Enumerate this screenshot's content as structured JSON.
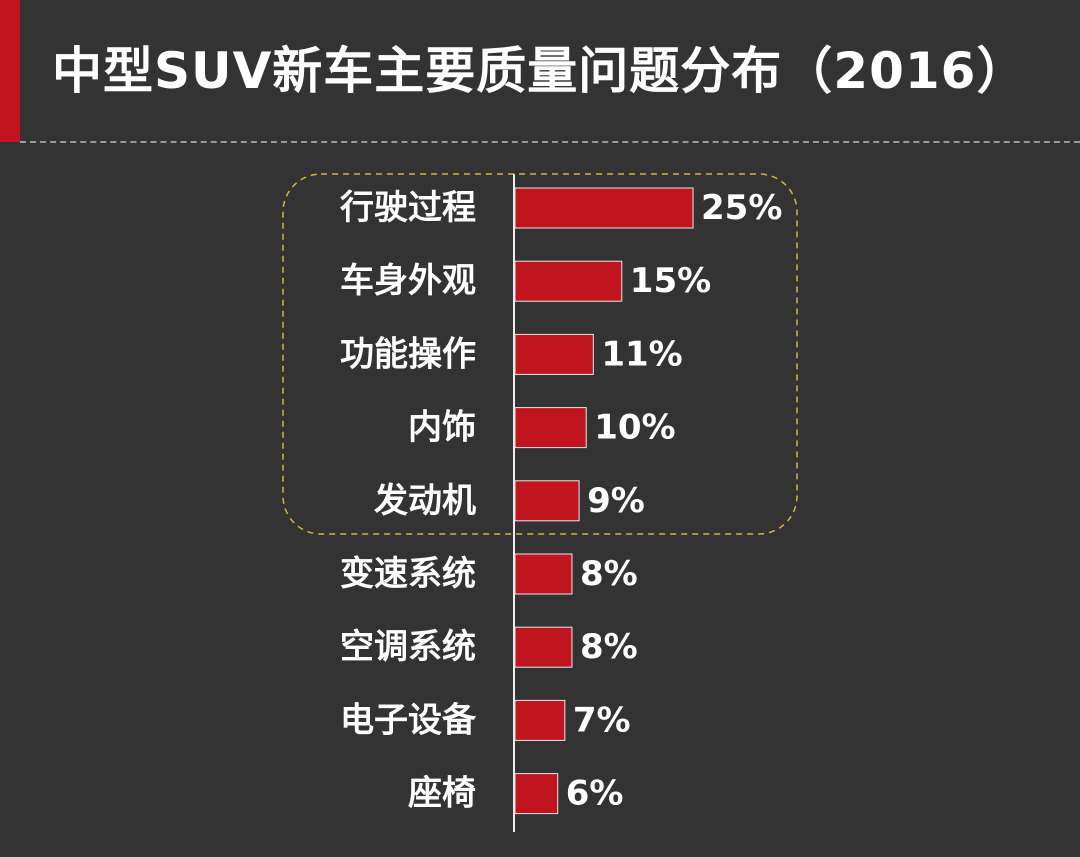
{
  "title": "中型SUV新车主要质量问题分布（2016）",
  "colors": {
    "background": "#333333",
    "accent": "#c0141f",
    "bar": "#c0141f",
    "bar_border": "#e8e8e8",
    "highlight_border": "#d4b43a",
    "text": "#ffffff"
  },
  "chart_data": {
    "type": "bar",
    "orientation": "horizontal",
    "categories": [
      "行驶过程",
      "车身外观",
      "功能操作",
      "内饰",
      "发动机",
      "变速系统",
      "空调系统",
      "电子设备",
      "座椅"
    ],
    "values": [
      25,
      15,
      11,
      10,
      9,
      8,
      8,
      7,
      6
    ],
    "value_labels": [
      "25%",
      "15%",
      "11%",
      "10%",
      "9%",
      "8%",
      "8%",
      "7%",
      "6%"
    ],
    "unit": "%",
    "highlighted_categories": [
      "行驶过程",
      "车身外观",
      "功能操作",
      "内饰",
      "发动机"
    ],
    "grid": false,
    "legend": "none"
  }
}
